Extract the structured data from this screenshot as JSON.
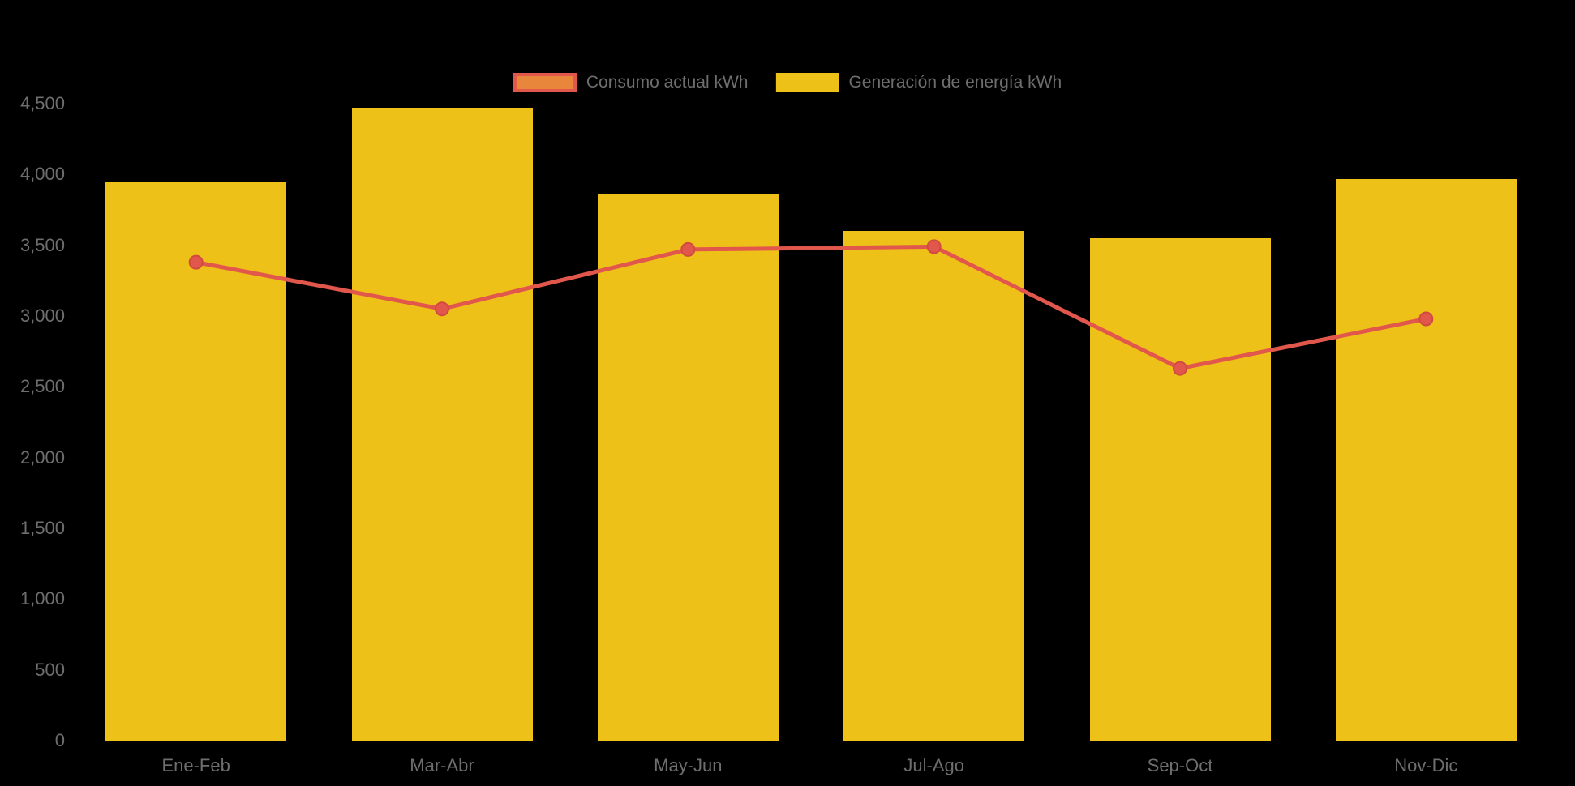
{
  "chart_data": {
    "type": "combo",
    "title": "",
    "categories": [
      "Ene-Feb",
      "Mar-Abr",
      "May-Jun",
      "Jul-Ago",
      "Sep-Oct",
      "Nov-Dic"
    ],
    "series": [
      {
        "name": "Generación de energía kWh",
        "type": "bar",
        "color": "#EEC118",
        "values": [
          3950,
          4470,
          3860,
          3600,
          3550,
          3970
        ]
      },
      {
        "name": "Consumo actual kWh",
        "type": "line",
        "color": "#E2574C",
        "marker_stroke": "#D04A40",
        "values": [
          3380,
          3050,
          3470,
          3490,
          2630,
          2980
        ]
      }
    ],
    "xlabel": "",
    "ylabel": "",
    "ylim": [
      0,
      4500
    ],
    "yticks": [
      0,
      500,
      1000,
      1500,
      2000,
      2500,
      3000,
      3500,
      4000,
      4500
    ],
    "grid": false,
    "legend_position": "top-center",
    "background": "#000000",
    "axis_label_color": "#6E6E6E"
  }
}
